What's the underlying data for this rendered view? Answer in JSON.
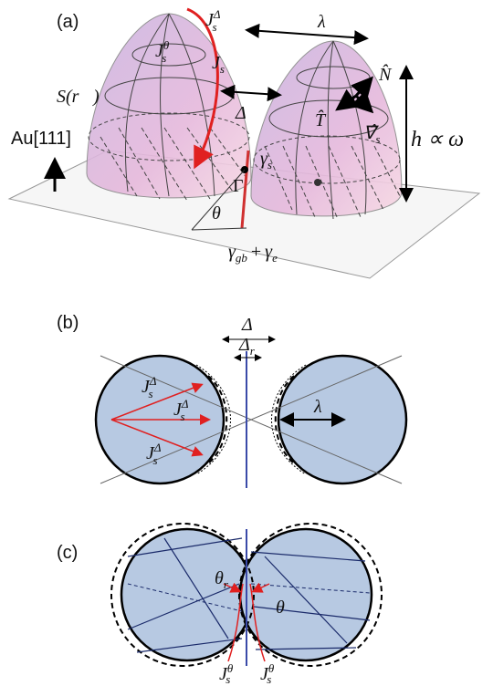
{
  "panel_a": {
    "label": "(a)",
    "j_delta": {
      "base": "J",
      "sub": "s",
      "sup": "Δ"
    },
    "j_theta": {
      "base": "J",
      "sub": "s",
      "sup": "θ"
    },
    "j_s": {
      "base": "J",
      "sub": "s"
    },
    "lambda": "λ",
    "surface": "S(r⃗)",
    "delta": "Δ",
    "normal": "N̂",
    "tangent": "T̂",
    "gradient": {
      "base": "∇̂",
      "sub": "s"
    },
    "height": "h ∝ ω",
    "substrate": "Au[111]",
    "gamma_s": {
      "base": "γ",
      "sub": "s"
    },
    "gamma": "Γ",
    "theta": "θ",
    "interface": {
      "gb": {
        "base": "γ",
        "sub": "gb"
      },
      "op": "+",
      "e": {
        "base": "γ",
        "sub": "e"
      }
    }
  },
  "panel_b": {
    "label": "(b)",
    "delta": "Δ",
    "delta_r": {
      "base": "Δ",
      "sub": "r"
    },
    "fluxes": [
      {
        "base": "J",
        "sub": "s",
        "sup": "Δ"
      },
      {
        "base": "J",
        "sub": "s",
        "sup": "Δ"
      },
      {
        "base": "J",
        "sub": "s",
        "sup": "Δ"
      }
    ],
    "lambda": "λ"
  },
  "panel_c": {
    "label": "(c)",
    "theta_r": {
      "base": "θ",
      "sub": "r"
    },
    "theta": "θ",
    "fluxes": [
      {
        "base": "J",
        "sub": "s",
        "sup": "θ"
      },
      {
        "base": "J",
        "sub": "s",
        "sup": "θ"
      }
    ]
  }
}
